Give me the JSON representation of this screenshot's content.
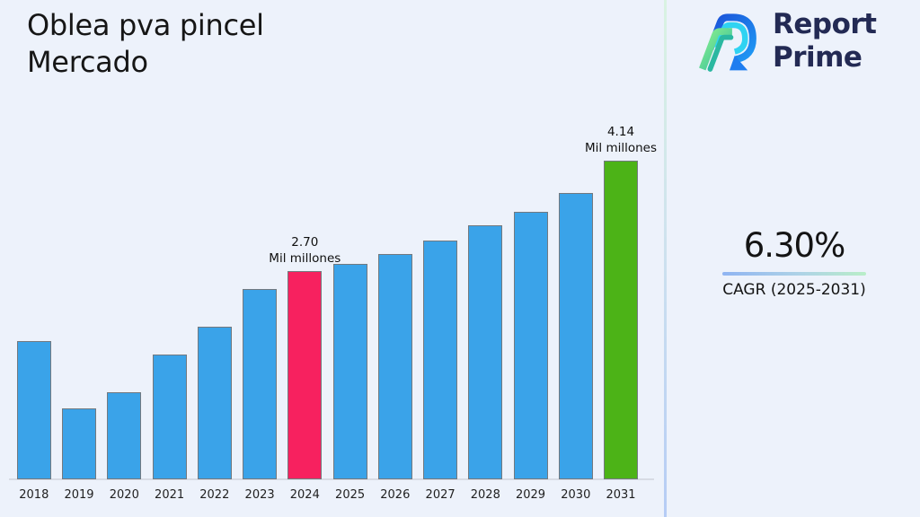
{
  "page": {
    "title_line1": "Oblea pva pincel",
    "title_line2": "Mercado",
    "background_color": "#edf2fb"
  },
  "logo": {
    "brand_line1": "Report",
    "brand_line2": "Prime",
    "brand_text_color": "#232a54",
    "mark_colors": {
      "dark_blue": "#1b50d8",
      "bright_blue": "#1e9bf5",
      "cyan": "#2fd3f2",
      "light_green": "#8df08c",
      "teal": "#2ab8a1"
    }
  },
  "stat": {
    "value": "6.30%",
    "caption": "CAGR (2025-2031)",
    "underline_gradient": [
      "#8fb4f2",
      "#b9eec8"
    ]
  },
  "chart_data": {
    "type": "bar",
    "title": "Oblea pva pincel Mercado",
    "xlabel": "",
    "ylabel": "",
    "unit": "Mil millones",
    "grid": false,
    "legend": false,
    "ylim": [
      0,
      4.6
    ],
    "categories": [
      "2018",
      "2019",
      "2020",
      "2021",
      "2022",
      "2023",
      "2024",
      "2025",
      "2026",
      "2027",
      "2028",
      "2029",
      "2030",
      "2031"
    ],
    "values": [
      1.8,
      0.92,
      1.13,
      1.62,
      1.98,
      2.47,
      2.7,
      2.8,
      2.93,
      3.1,
      3.3,
      3.48,
      3.72,
      4.14
    ],
    "data_labels": [
      {
        "category": "2024",
        "lines": [
          "2.70",
          "Mil millones"
        ]
      },
      {
        "category": "2031",
        "lines": [
          "4.14",
          "Mil millones"
        ]
      }
    ],
    "colors": {
      "default_bar": "#3aa3e9",
      "by_category": {
        "2024": "#f7215f",
        "2031": "#4cb317"
      },
      "bar_border": "#73797f",
      "axis_line": "#d7dbe4"
    }
  }
}
